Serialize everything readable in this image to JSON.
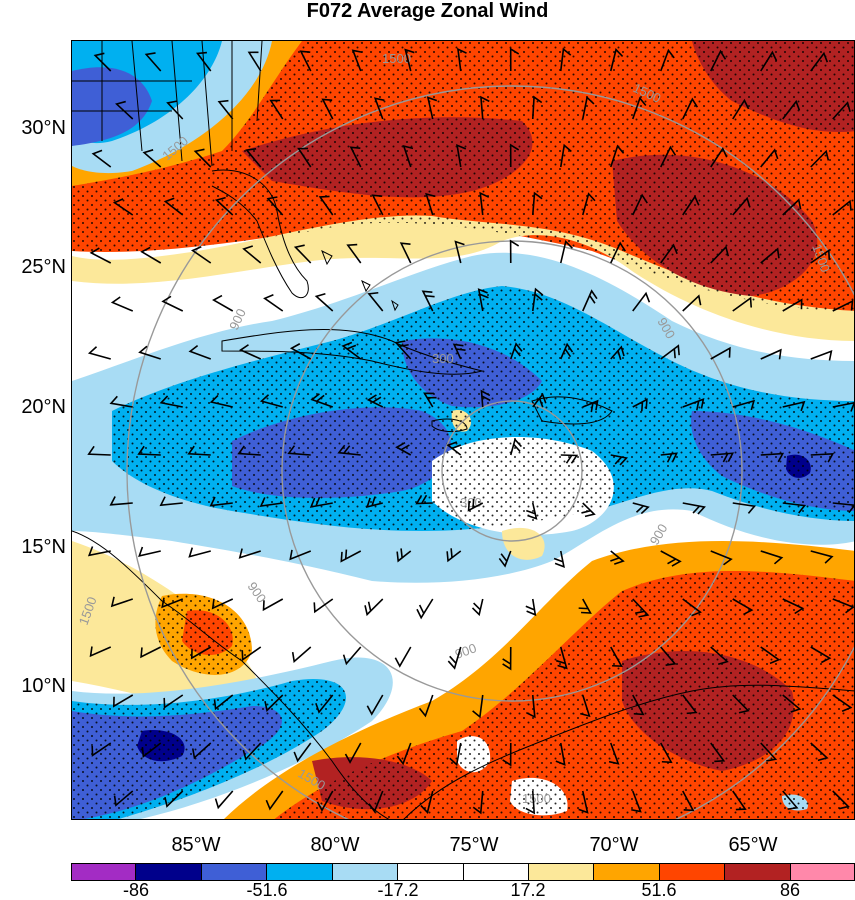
{
  "title": "F072 Average Zonal Wind",
  "lat_labels": [
    "30°N",
    "25°N",
    "20°N",
    "15°N",
    "10°N"
  ],
  "lon_labels": [
    "85°W",
    "80°W",
    "75°W",
    "70°W",
    "65°W"
  ],
  "colorbar": {
    "colors": [
      "#a32cc4",
      "#00008b",
      "#3f5fd6",
      "#00b0f0",
      "#a8dcf4",
      "#ffffff",
      "#ffffff",
      "#fce89a",
      "#ffa500",
      "#ff4500",
      "#b22222",
      "#ff88aa"
    ],
    "tick_labels": [
      "-86",
      "-51.6",
      "-17.2",
      "17.2",
      "51.6",
      "86"
    ]
  },
  "contour_labels": [
    "1500",
    "1500",
    "1500",
    "1500",
    "900",
    "900",
    "900",
    "900",
    "300",
    "300",
    "900",
    "1500",
    "1500",
    "1500"
  ],
  "fill_colors": {
    "strong_neg": "#00008b",
    "neg": "#3f5fd6",
    "mid_neg": "#00b0f0",
    "weak_neg": "#a8dcf4",
    "neutral": "#ffffff",
    "weak_pos": "#fce89a",
    "mid_pos": "#ffa500",
    "pos": "#ff4500",
    "strong_pos": "#b22222"
  }
}
